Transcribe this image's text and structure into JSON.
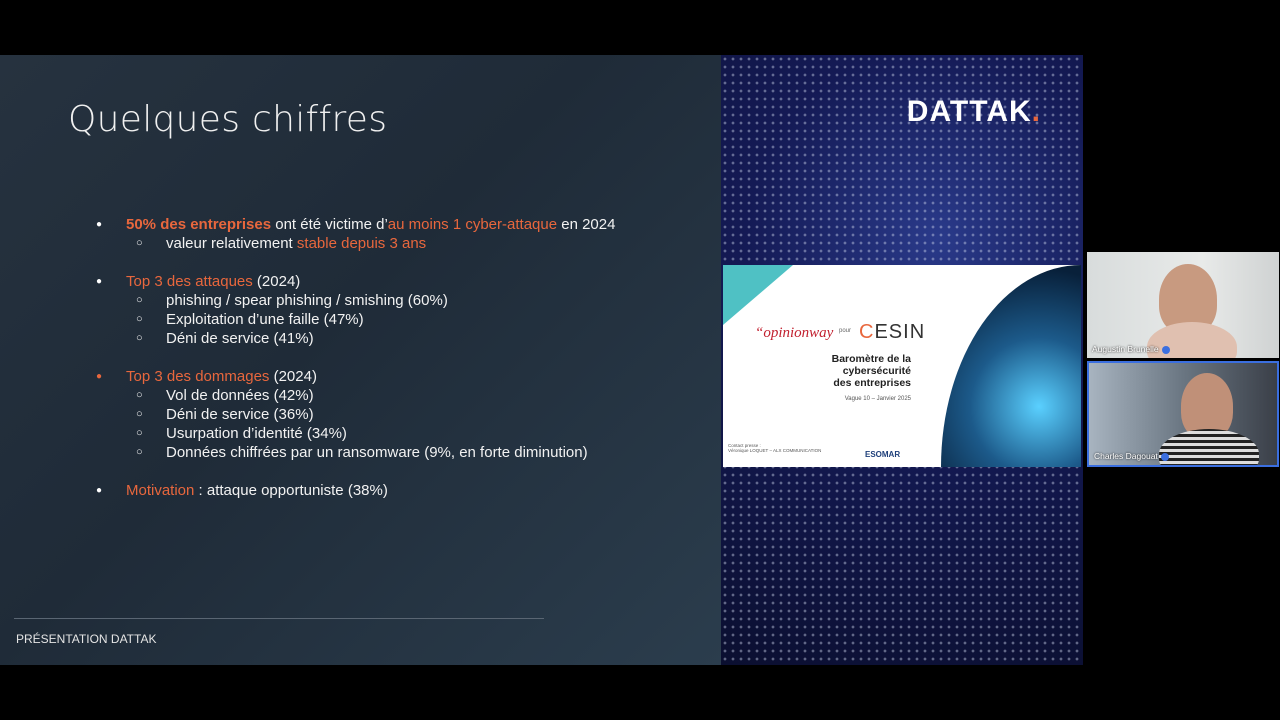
{
  "slide": {
    "title": "Quelques chiffres",
    "bullets": [
      {
        "a": "50% des entreprises",
        "b": " ont été victime d’",
        "c": "au moins 1 cyber-attaque",
        "d": " en 2024",
        "sub": [
          {
            "a": "valeur relativement ",
            "b": "stable depuis 3 ans"
          }
        ]
      },
      {
        "a": "Top 3 des attaques",
        "b": " (2024)",
        "sub": [
          "phishing / spear phishing / smishing (60%)",
          "Exploitation d’une faille (47%)",
          "Déni de service (41%)"
        ]
      },
      {
        "a": "Top 3 des dommages",
        "b": " (2024)",
        "sub": [
          "Vol de données (42%)",
          "Déni de service (36%)",
          "Usurpation d’identité (34%)",
          "Données chiffrées par un ransomware (9%, en forte diminution)"
        ]
      },
      {
        "a": "Motivation",
        "b": " : attaque opportuniste (38%)"
      }
    ],
    "footer": "PRÉSENTATION DATTAK"
  },
  "right": {
    "logo": "DATTAK",
    "logo_dot": ".",
    "card": {
      "opinionway": "“opinionway",
      "pour": "pour",
      "cesin_c": "C",
      "cesin_rest": "ESIN",
      "title_1": "Baromètre de la cybersécurité",
      "title_2": "des entreprises",
      "wave": "Vague 10 – Janvier 2025",
      "contact_1": "Contact presse :",
      "contact_2": "Véronique LOQUET – ALX COMMUNICATION",
      "esomar": "ESOMAR"
    }
  },
  "participants": [
    {
      "name": "Augustin Brunelle"
    },
    {
      "name": "Charles Dagouat"
    }
  ],
  "colors": {
    "accent": "#e8673d",
    "speaking": "#3b6fe0"
  }
}
